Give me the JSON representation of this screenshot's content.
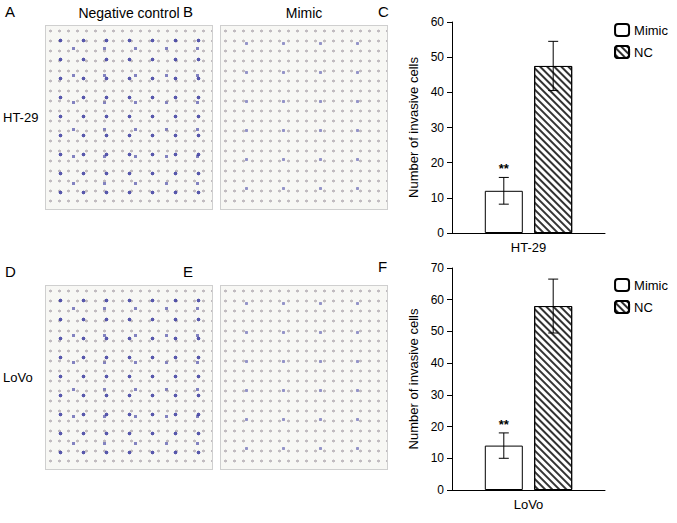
{
  "figure": {
    "columns": [
      "Negative control",
      "Mimic"
    ],
    "rows": [
      {
        "label": "HT-29",
        "panels": [
          "A",
          "B"
        ]
      },
      {
        "label": "LoVo",
        "panels": [
          "D",
          "E"
        ]
      }
    ]
  },
  "chart_data": [
    {
      "type": "bar",
      "panel": "C",
      "y_label": "Number of invasive cells",
      "categories": [
        "HT-29"
      ],
      "series": [
        {
          "name": "Mimic",
          "color": "#ffffff",
          "values": [
            12
          ],
          "errors": [
            3.8
          ]
        },
        {
          "name": "NC",
          "color": "#333333",
          "marker": "hatch",
          "values": [
            47.5
          ],
          "errors": [
            7
          ]
        }
      ],
      "ylim": [
        0,
        60
      ],
      "yticks": [
        0,
        10,
        20,
        30,
        40,
        50,
        60
      ],
      "grid": false,
      "legend": "upper right",
      "annotations": [
        {
          "text": "**",
          "series": "Mimic",
          "category": "HT-29"
        }
      ]
    },
    {
      "type": "bar",
      "panel": "F",
      "y_label": "Number of invasive cells",
      "categories": [
        "LoVo"
      ],
      "series": [
        {
          "name": "Mimic",
          "color": "#ffffff",
          "values": [
            14
          ],
          "errors": [
            4
          ]
        },
        {
          "name": "NC",
          "color": "#333333",
          "marker": "hatch",
          "values": [
            58
          ],
          "errors": [
            8.5
          ]
        }
      ],
      "ylim": [
        0,
        70
      ],
      "yticks": [
        0,
        10,
        20,
        30,
        40,
        50,
        60,
        70
      ],
      "grid": false,
      "legend": "upper right",
      "annotations": [
        {
          "text": "**",
          "series": "Mimic",
          "category": "LoVo"
        }
      ]
    }
  ]
}
